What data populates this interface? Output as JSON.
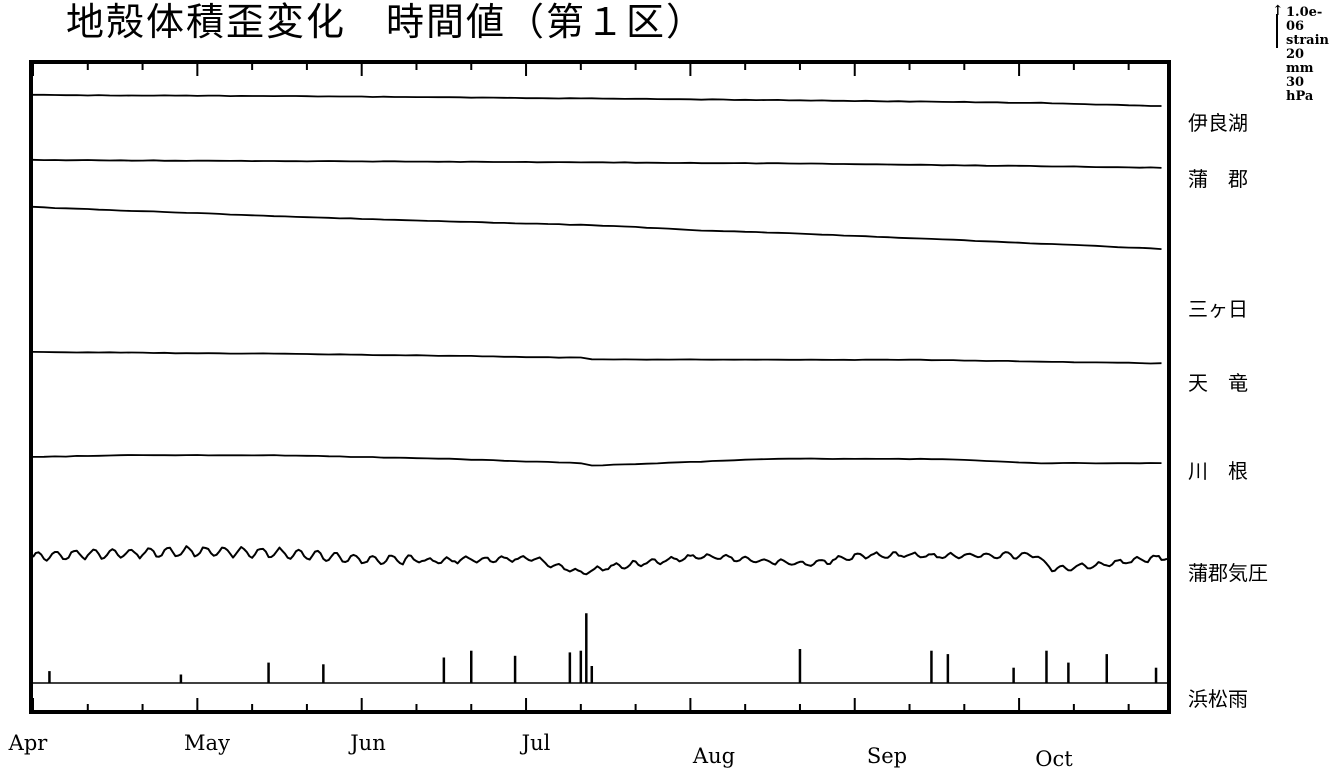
{
  "title": "地殻体積歪変化　時間値（第１区）",
  "scale_legend": [
    "1.0e-06 strain",
    "20 mm",
    "30 hPa"
  ],
  "chart_data": {
    "type": "line",
    "title": "地殻体積歪変化　時間値（第１区）",
    "x_axis": {
      "type": "time",
      "months": [
        "Apr",
        "May",
        "Jun",
        "Jul",
        "Aug",
        "Sep",
        "Oct"
      ],
      "range": [
        "Apr 1",
        "Oct 25"
      ]
    },
    "scale": {
      "strain": "1.0e-06 strain",
      "rain": "20 mm",
      "pressure": "30 hPa"
    },
    "series": [
      {
        "name": "伊良湖",
        "kind": "strain",
        "x": [
          "Apr 1",
          "May 15",
          "Jul 1",
          "Aug 15",
          "Oct 1",
          "Oct 25"
        ],
        "y": [
          0,
          -0.03,
          -0.09,
          -0.15,
          -0.23,
          -0.33
        ]
      },
      {
        "name": "蒲　郡",
        "kind": "strain",
        "x": [
          "Apr 1",
          "May 15",
          "Jul 1",
          "Aug 15",
          "Oct 1",
          "Oct 25"
        ],
        "y": [
          0,
          -0.03,
          -0.06,
          -0.1,
          -0.18,
          -0.23
        ]
      },
      {
        "name": "三ヶ日",
        "kind": "strain",
        "x": [
          "Apr 1",
          "May 15",
          "Jun 15",
          "Jul 15",
          "Aug 1",
          "Aug 15",
          "Sep 15",
          "Oct 25"
        ],
        "y": [
          0,
          -0.27,
          -0.42,
          -0.55,
          -0.69,
          -0.76,
          -0.96,
          -1.24
        ]
      },
      {
        "name": "天　竜",
        "kind": "strain",
        "x": [
          "Apr 1",
          "May 15",
          "Jun 15",
          "Jul 10",
          "Jul 11",
          "Aug 1",
          "Sep 10",
          "Oct 1",
          "Oct 25"
        ],
        "y": [
          0,
          -0.05,
          -0.11,
          -0.17,
          -0.22,
          -0.22,
          -0.23,
          -0.28,
          -0.34
        ]
      },
      {
        "name": "川　根",
        "kind": "strain",
        "x": [
          "Apr 1",
          "Apr 20",
          "May 15",
          "Jun 15",
          "Jul 10",
          "Jul 11",
          "Aug 15",
          "Sep 15",
          "Oct 1",
          "Oct 25"
        ],
        "y": [
          0,
          0.06,
          0.05,
          -0.05,
          -0.18,
          -0.26,
          -0.05,
          -0.06,
          -0.18,
          -0.18
        ]
      },
      {
        "name": "蒲郡気圧",
        "kind": "pressure",
        "x": [
          "Apr 1",
          "Apr 15",
          "May 1",
          "May 15",
          "Jun 1",
          "Jun 15",
          "Jul 1",
          "Jul 10",
          "Jul 15",
          "Aug 1",
          "Aug 20",
          "Sep 1",
          "Sep 15",
          "Oct 1",
          "Oct 4",
          "Oct 25"
        ],
        "y": [
          0,
          2,
          4,
          3,
          -3,
          -4,
          -2,
          -15,
          -10,
          0,
          -7,
          1,
          0,
          1,
          -12,
          -1
        ]
      },
      {
        "name": "浜松雨",
        "kind": "rain",
        "x": [
          "Apr 4",
          "Apr 28",
          "May 14",
          "May 24",
          "Jun 15",
          "Jun 20",
          "Jun 28",
          "Jul 8",
          "Jul 10",
          "Jul 11",
          "Jul 12",
          "Aug 19",
          "Sep 12",
          "Sep 15",
          "Sep 27",
          "Oct 3",
          "Oct 7",
          "Oct 14",
          "Oct 23"
        ],
        "y": [
          7,
          5,
          12,
          11,
          15,
          19,
          16,
          18,
          19,
          41,
          10,
          20,
          19,
          17,
          9,
          19,
          12,
          17,
          9
        ]
      }
    ]
  }
}
